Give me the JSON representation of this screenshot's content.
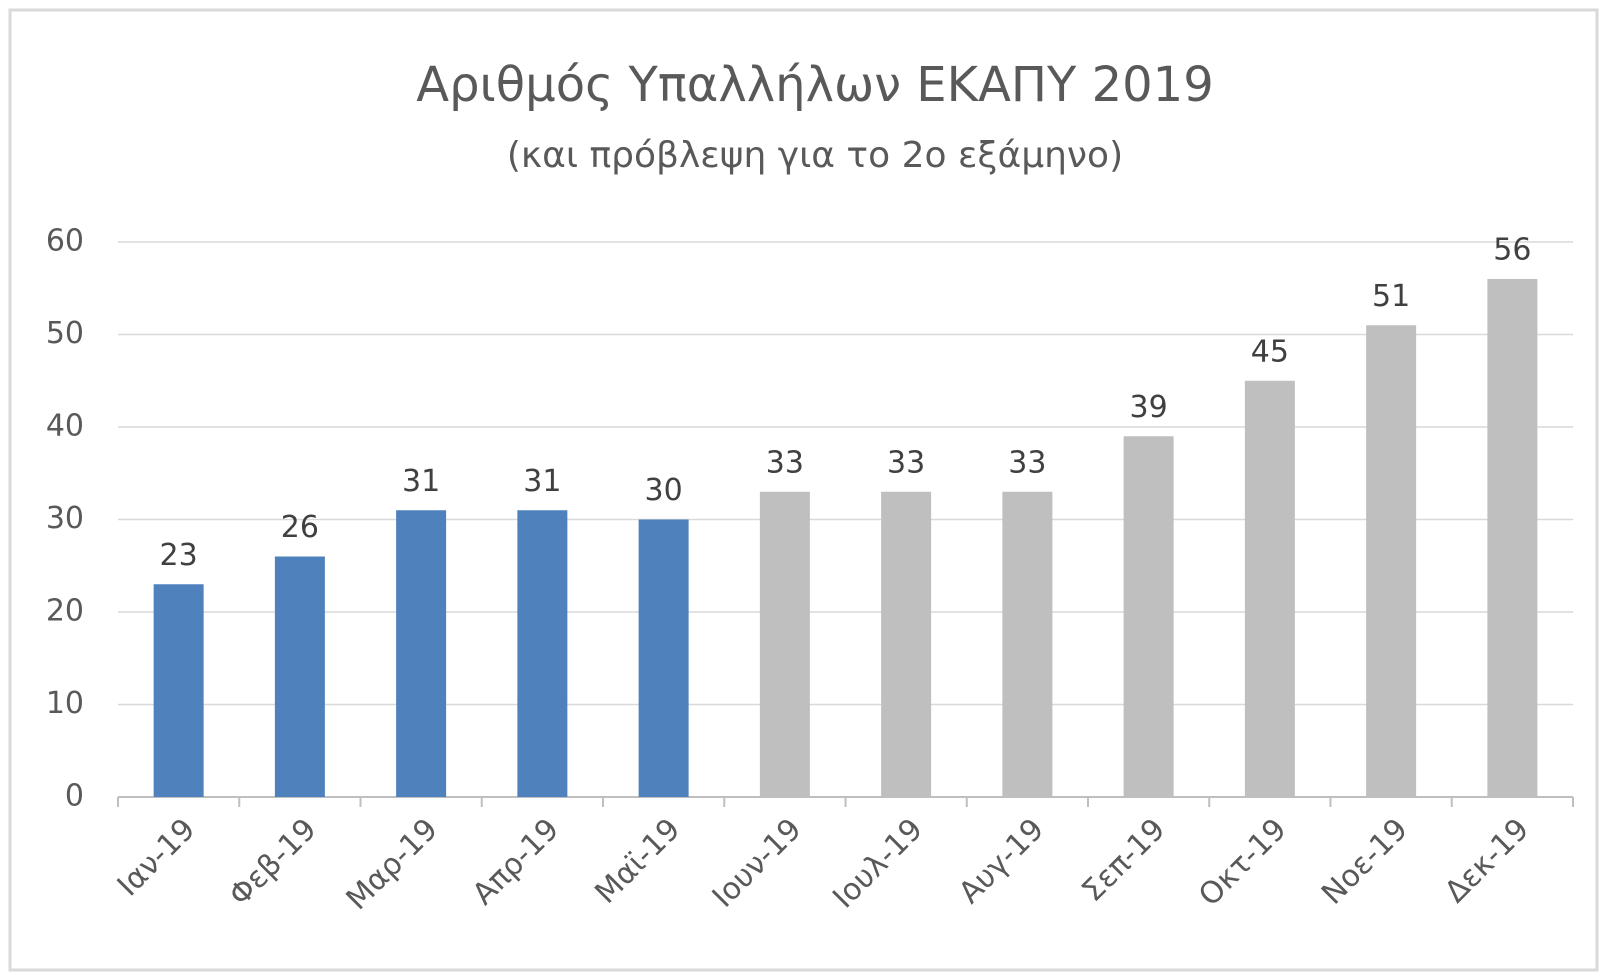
{
  "chart_data": {
    "type": "bar",
    "title": "Αριθμός Υπαλλήλων ΕΚΑΠΥ 2019",
    "subtitle": "(και πρόβλεψη για το 2ο εξάμηνο)",
    "categories": [
      "Ιαν-19",
      "Φεβ-19",
      "Μαρ-19",
      "Απρ-19",
      "Μαϊ-19",
      "Ιουν-19",
      "Ιουλ-19",
      "Αυγ-19",
      "Σεπ-19",
      "Οκτ-19",
      "Νοε-19",
      "Δεκ-19"
    ],
    "values": [
      23,
      26,
      31,
      31,
      30,
      33,
      33,
      33,
      39,
      45,
      51,
      56
    ],
    "colors": [
      "#4f81bd",
      "#4f81bd",
      "#4f81bd",
      "#4f81bd",
      "#4f81bd",
      "#bfbfbf",
      "#bfbfbf",
      "#bfbfbf",
      "#bfbfbf",
      "#bfbfbf",
      "#bfbfbf",
      "#bfbfbf"
    ],
    "ylim": [
      0,
      60
    ],
    "yticks": [
      0,
      10,
      20,
      30,
      40,
      50,
      60
    ],
    "grid": true
  }
}
